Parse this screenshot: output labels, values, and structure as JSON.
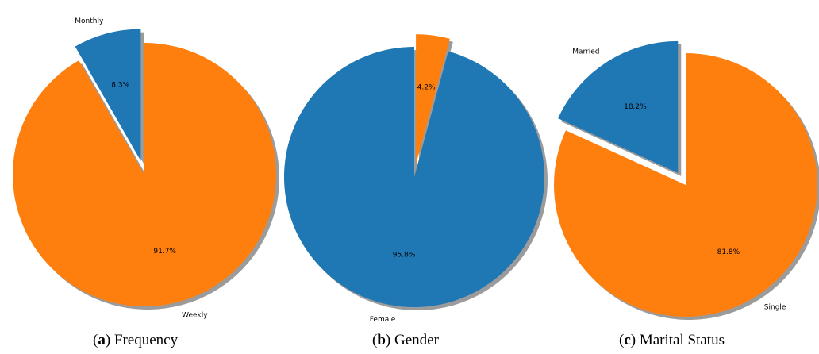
{
  "figure": {
    "subfigures": [
      {
        "letter": "a",
        "caption": "Frequency"
      },
      {
        "letter": "b",
        "caption": "Gender"
      },
      {
        "letter": "c",
        "caption": "Marital Status"
      }
    ]
  },
  "chart_data": [
    {
      "type": "pie",
      "slices": [
        {
          "label": "Monthly",
          "value": 8.3,
          "pct_text": "8.3%",
          "color": "#1f77b4",
          "exploded": true
        },
        {
          "label": "Weekly",
          "value": 91.7,
          "pct_text": "91.7%",
          "color": "#ff7f0e",
          "exploded": false
        }
      ],
      "shadow": true
    },
    {
      "type": "pie",
      "slices": [
        {
          "label": "Female",
          "value": 95.8,
          "pct_text": "95.8%",
          "color": "#1f77b4",
          "exploded": false
        },
        {
          "label": "",
          "value": 4.2,
          "pct_text": "4.2%",
          "color": "#ff7f0e",
          "exploded": true
        }
      ],
      "shadow": true
    },
    {
      "type": "pie",
      "slices": [
        {
          "label": "Married",
          "value": 18.2,
          "pct_text": "18.2%",
          "color": "#1f77b4",
          "exploded": true
        },
        {
          "label": "Single",
          "value": 81.8,
          "pct_text": "81.8%",
          "color": "#ff7f0e",
          "exploded": false
        }
      ],
      "shadow": true
    }
  ]
}
